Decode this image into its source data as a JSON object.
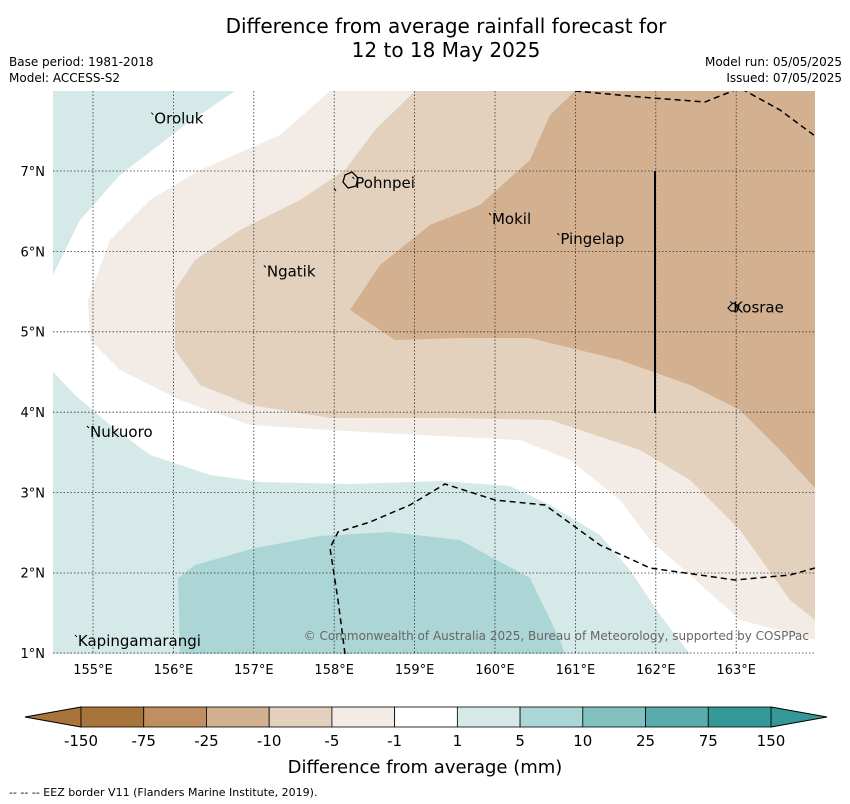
{
  "title": {
    "line1": "Difference from average rainfall forecast for",
    "line2": "12 to 18 May 2025"
  },
  "meta_left": {
    "base_period": "Base period: 1981-2018",
    "model": "Model: ACCESS-S2"
  },
  "meta_right": {
    "model_run": "Model run: 05/05/2025",
    "issued": "Issued: 07/05/2025"
  },
  "map": {
    "lon_ticks": [
      "155°E",
      "156°E",
      "157°E",
      "158°E",
      "159°E",
      "160°E",
      "161°E",
      "162°E",
      "163°E"
    ],
    "lat_ticks": [
      "1°N",
      "2°N",
      "3°N",
      "4°N",
      "5°N",
      "6°N",
      "7°N"
    ],
    "places": [
      {
        "name": "Oroluk",
        "lon": 155.75,
        "lat": 7.65
      },
      {
        "name": "Pohnpei",
        "lon": 158.25,
        "lat": 6.85
      },
      {
        "name": "Mokil",
        "lon": 159.95,
        "lat": 6.4
      },
      {
        "name": "Pingelap",
        "lon": 160.8,
        "lat": 6.15
      },
      {
        "name": "Ngatik",
        "lon": 157.15,
        "lat": 5.75
      },
      {
        "name": "Kosrae",
        "lon": 162.95,
        "lat": 5.3
      },
      {
        "name": "Nukuoro",
        "lon": 154.95,
        "lat": 3.75
      },
      {
        "name": "Kapingamarangi",
        "lon": 154.8,
        "lat": 1.15
      }
    ],
    "copyright": "© Commonwealth of Australia 2025, Bureau of Meteorology, supported by COSPPac"
  },
  "colorbar": {
    "labels": [
      "-150",
      "-75",
      "-25",
      "-10",
      "-5",
      "-1",
      "1",
      "5",
      "10",
      "25",
      "75",
      "150"
    ],
    "colors": [
      "#a8743c",
      "#bf8f62",
      "#d2b090",
      "#e3d0bd",
      "#f3ece6",
      "#ffffff",
      "#d5e9e8",
      "#acd6d5",
      "#81c2c1",
      "#5aacac",
      "#329898"
    ],
    "ext_low_color": "#a8743c",
    "ext_high_color": "#329898",
    "title": "Difference from average (mm)"
  },
  "footer": "--  --  -- EEZ border V11 (Flanders Marine Institute, 2019)."
}
